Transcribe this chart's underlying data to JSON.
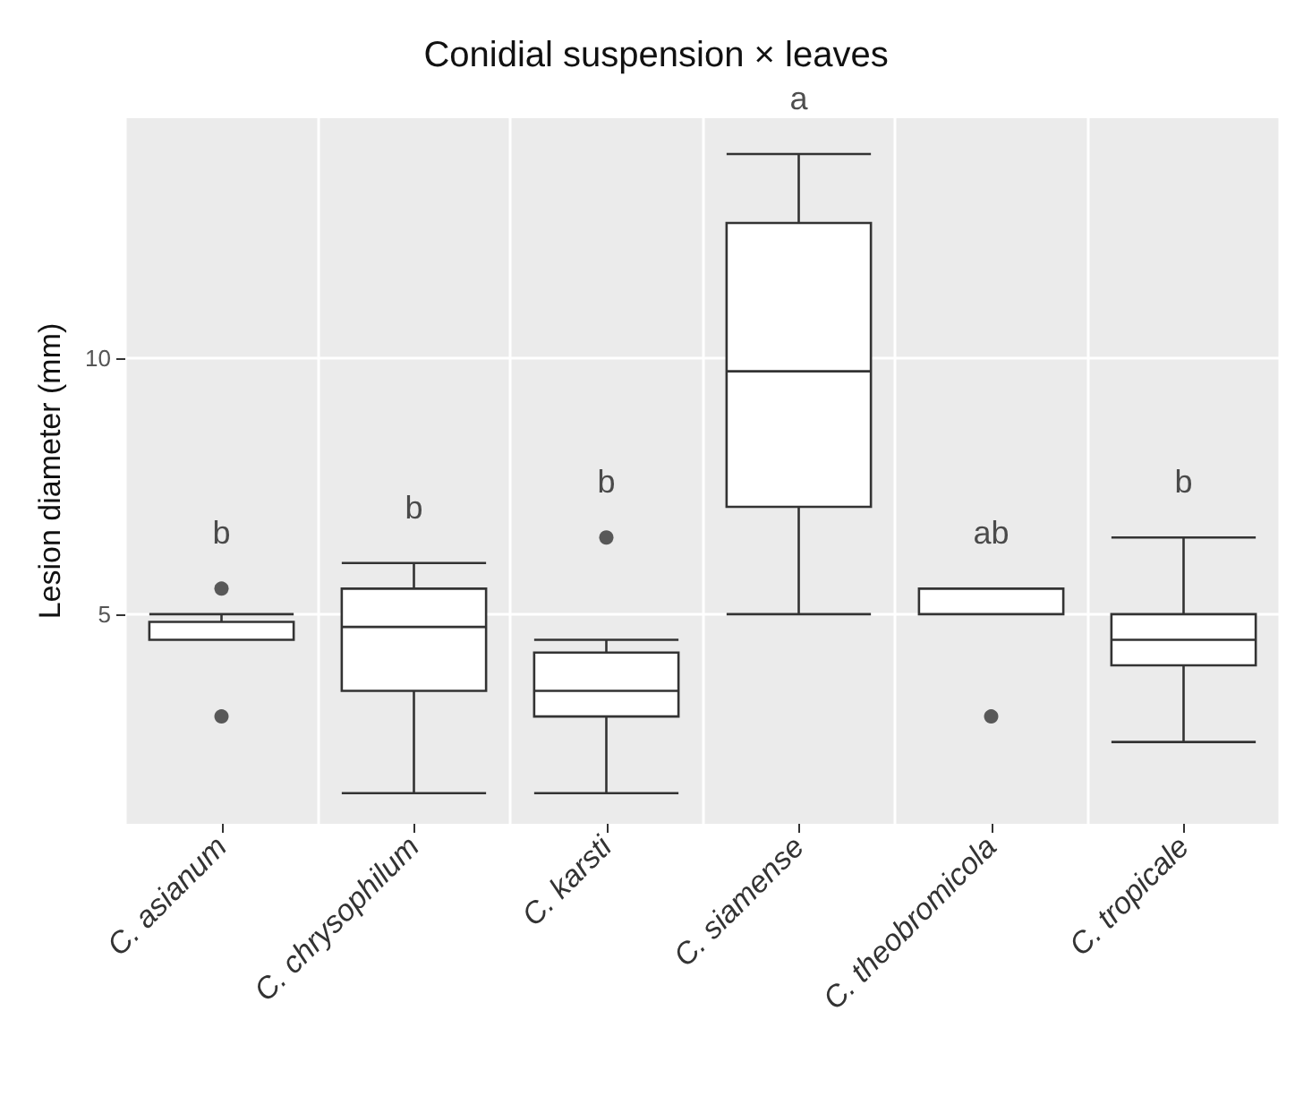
{
  "chart_data": {
    "type": "box",
    "title": "Conidial suspension × leaves",
    "ylabel": "Lesion diameter (mm)",
    "categories": [
      "C. asianum",
      "C. chrysophilum",
      "C. karsti",
      "C. siamense",
      "C. theobromicola",
      "C. tropicale"
    ],
    "boxes": [
      {
        "low": 4.5,
        "q1": 4.5,
        "median": 4.5,
        "q3": 4.85,
        "high": 5,
        "outliers": [
          5.5,
          3
        ]
      },
      {
        "low": 1.5,
        "q1": 3.5,
        "median": 4.75,
        "q3": 5.5,
        "high": 6
      },
      {
        "low": 1.5,
        "q1": 3,
        "median": 3.5,
        "q3": 4.25,
        "high": 4.5,
        "outliers": [
          6.5
        ]
      },
      {
        "low": 5,
        "q1": 7.1,
        "median": 9.75,
        "q3": 12.65,
        "high": 14
      },
      {
        "low": 5,
        "q1": 5,
        "median": 5,
        "q3": 5.5,
        "high": 5.5,
        "outliers": [
          3
        ]
      },
      {
        "low": 2.5,
        "q1": 4,
        "median": 4.5,
        "q3": 5,
        "high": 6.5
      }
    ],
    "color": "#333333",
    "ylim": [
      0.9,
      14.7
    ],
    "yticks": [
      5,
      10
    ],
    "grid": true,
    "annotations": [
      "b",
      "b",
      "b",
      "a",
      "ab",
      "b"
    ]
  }
}
